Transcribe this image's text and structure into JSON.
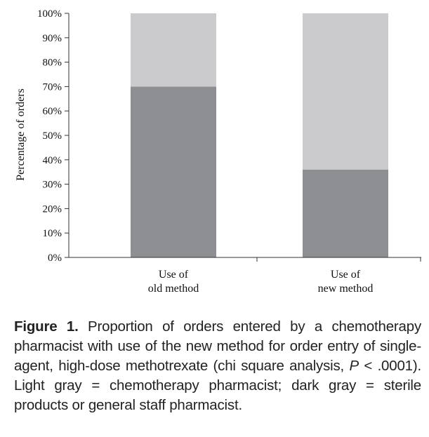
{
  "chart_data": {
    "type": "bar",
    "stacked": true,
    "percent_stacked": true,
    "ylabel": "Percentage of orders",
    "ylim": [
      0,
      100
    ],
    "yticks": [
      "0%",
      "10%",
      "20%",
      "30%",
      "40%",
      "50%",
      "60%",
      "70%",
      "80%",
      "90%",
      "100%"
    ],
    "categories": [
      [
        "Use of",
        "old method"
      ],
      [
        "Use of",
        "new method"
      ]
    ],
    "series": [
      {
        "values": [
          70,
          36
        ],
        "color": "#8e8f92"
      },
      {
        "values": [
          30,
          64
        ],
        "color": "#cbcbcd"
      }
    ]
  },
  "caption": {
    "figure_label": "Figure 1.",
    "text_1": " Proportion of orders entered by a chemotherapy pharmacist with use of the new method for order entry of single-agent, high-dose methotrexate (chi square analysis, ",
    "p_symbol": "P",
    "text_2": " < .0001). Light gray = chemotherapy pharmacist; dark gray = sterile products or general staff pharmacist."
  }
}
